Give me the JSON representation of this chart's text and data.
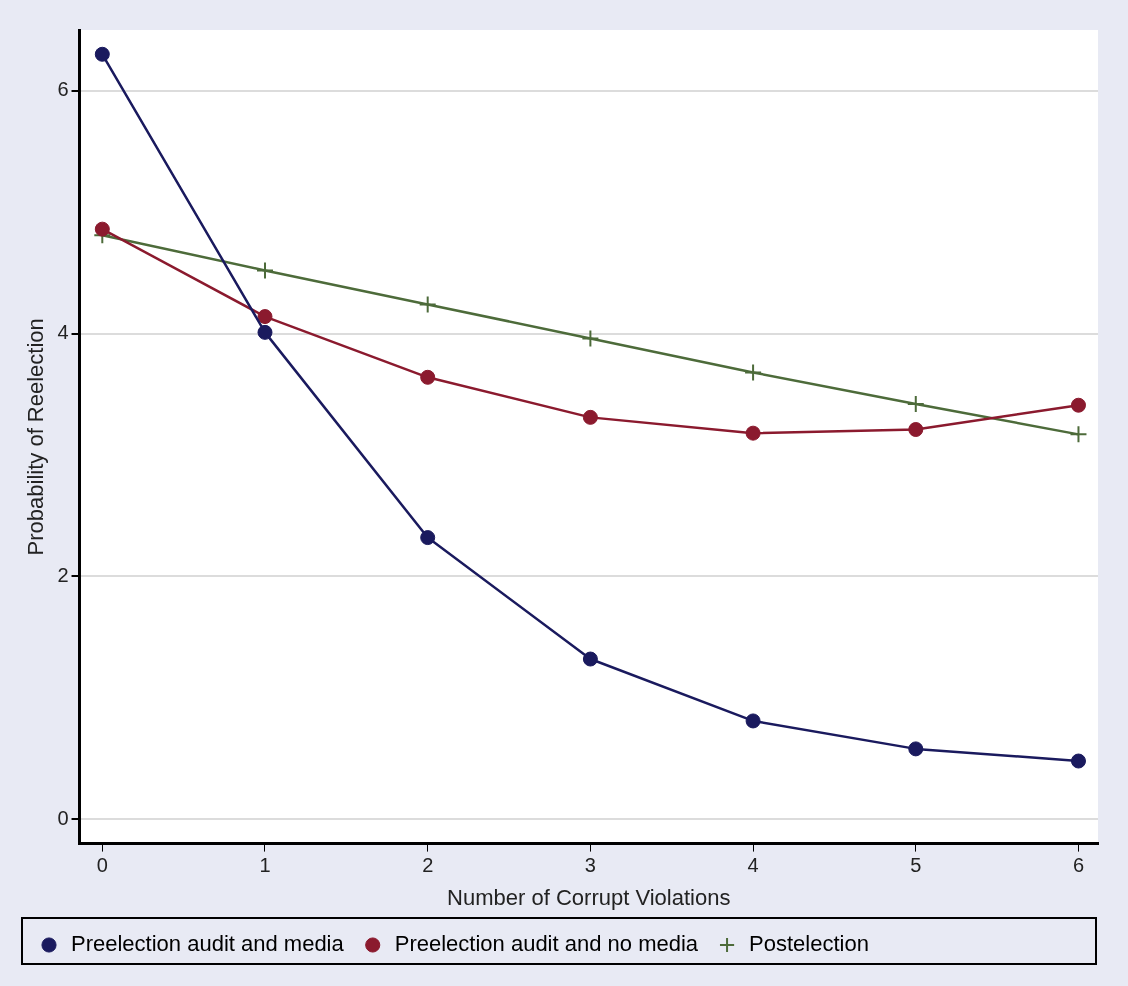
{
  "chart_data": {
    "type": "line",
    "xlabel": "Number of Corrupt Violations",
    "ylabel": "Probability of Reelection",
    "x": [
      0,
      1,
      2,
      3,
      4,
      5,
      6
    ],
    "xlim": [
      -0.14,
      6.12
    ],
    "xticks": [
      0,
      1,
      2,
      3,
      4,
      5,
      6
    ],
    "ylim": [
      -0.2,
      6.5
    ],
    "yticks": [
      0,
      2,
      4,
      6
    ],
    "grid": "y",
    "legend": "bottom",
    "line_style": "solid",
    "series": [
      {
        "name": "Preelection audit and media",
        "color": "#1a1a5e",
        "marker": "circle",
        "values": [
          6.3,
          4.01,
          2.32,
          1.32,
          0.81,
          0.58,
          0.48
        ]
      },
      {
        "name": "Preelection audit and no media",
        "color": "#8b1a2e",
        "marker": "circle",
        "values": [
          4.86,
          4.14,
          3.64,
          3.31,
          3.18,
          3.21,
          3.41
        ]
      },
      {
        "name": "Postelection",
        "color": "#4d6b3a",
        "marker": "cross",
        "values": [
          4.81,
          4.52,
          4.24,
          3.96,
          3.68,
          3.42,
          3.17
        ]
      }
    ]
  }
}
